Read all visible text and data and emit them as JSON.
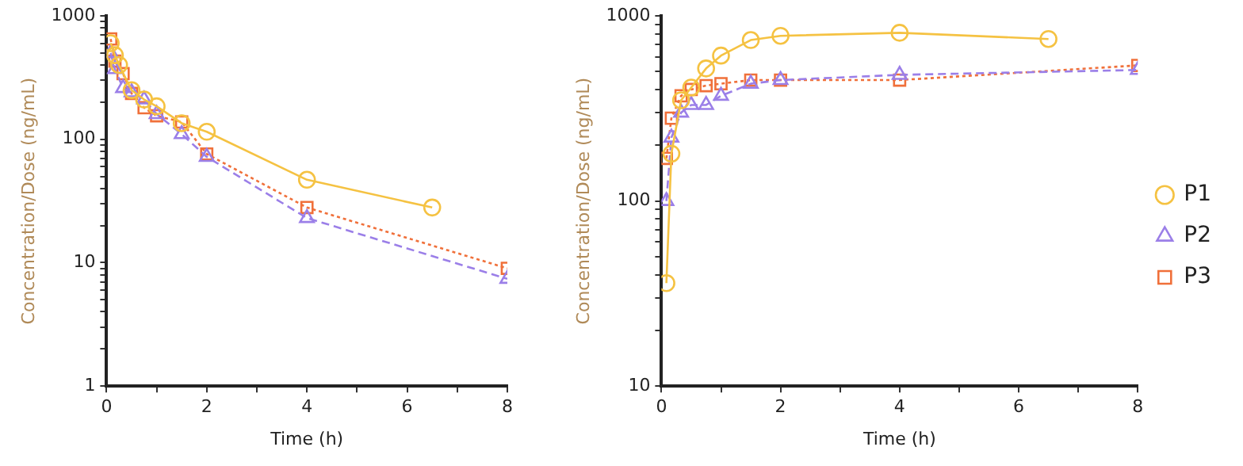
{
  "chart_data": [
    {
      "type": "line",
      "xlabel": "Time (h)",
      "ylabel": "Concentration/Dose (ng/mL)",
      "log": "y",
      "grid": false,
      "legend": false,
      "xlim": [
        0,
        8
      ],
      "xticks": [
        0,
        {
          "value": 1,
          "label": null
        },
        2,
        {
          "value": 3,
          "label": null
        },
        4,
        {
          "value": 5,
          "label": null
        },
        6,
        {
          "value": 7,
          "label": null
        },
        8
      ],
      "ylim": [
        1,
        1000
      ],
      "yticks": [
        1,
        {
          "value": 2,
          "label": null
        },
        {
          "value": 3,
          "label": null
        },
        {
          "value": 4,
          "label": null
        },
        {
          "value": 5,
          "label": null
        },
        {
          "value": 6,
          "label": null
        },
        {
          "value": 7,
          "label": null
        },
        {
          "value": 8,
          "label": null
        },
        {
          "value": 9,
          "label": null
        },
        10,
        {
          "value": 20,
          "label": null
        },
        {
          "value": 30,
          "label": null
        },
        {
          "value": 40,
          "label": null
        },
        {
          "value": 50,
          "label": null
        },
        {
          "value": 60,
          "label": null
        },
        {
          "value": 70,
          "label": null
        },
        {
          "value": 80,
          "label": null
        },
        {
          "value": 90,
          "label": null
        },
        100,
        {
          "value": 200,
          "label": null
        },
        {
          "value": 300,
          "label": null
        },
        {
          "value": 400,
          "label": null
        },
        {
          "value": 500,
          "label": null
        },
        {
          "value": 600,
          "label": null
        },
        {
          "value": 700,
          "label": null
        },
        {
          "value": 800,
          "label": null
        },
        {
          "value": 900,
          "label": null
        },
        1000
      ],
      "series": [
        {
          "color": "#f5c242",
          "marker": "circle",
          "line_style": "solid",
          "x": [
            0.083,
            0.167,
            0.25,
            0.5,
            0.75,
            1,
            1.5,
            2,
            4,
            6.5
          ],
          "values": [
            600,
            480,
            400,
            250,
            210,
            185,
            135,
            115,
            47,
            28
          ]
        },
        {
          "color": "#9b7fe8",
          "marker": "triangle",
          "line_style": "dashed",
          "x": [
            0.083,
            0.167,
            0.33,
            0.5,
            0.75,
            1,
            1.5,
            2,
            4,
            8
          ],
          "values": [
            500,
            370,
            260,
            240,
            210,
            160,
            110,
            72,
            23,
            7.4
          ]
        },
        {
          "color": "#f0703a",
          "marker": "square",
          "line_style": "dotted",
          "x": [
            0.083,
            0.167,
            0.33,
            0.5,
            0.75,
            1,
            1.5,
            2,
            4,
            8
          ],
          "values": [
            650,
            430,
            340,
            235,
            180,
            155,
            138,
            76,
            28,
            9
          ]
        }
      ]
    },
    {
      "type": "line",
      "xlabel": "Time (h)",
      "ylabel": "Concentration/Dose (ng/mL)",
      "log": "y",
      "grid": false,
      "legend": "right",
      "xlim": [
        0,
        8
      ],
      "xticks": [
        0,
        {
          "value": 1,
          "label": null
        },
        2,
        {
          "value": 3,
          "label": null
        },
        4,
        {
          "value": 5,
          "label": null
        },
        6,
        {
          "value": 7,
          "label": null
        },
        8
      ],
      "ylim": [
        10,
        1000
      ],
      "yticks": [
        10,
        {
          "value": 20,
          "label": null
        },
        {
          "value": 30,
          "label": null
        },
        {
          "value": 40,
          "label": null
        },
        {
          "value": 50,
          "label": null
        },
        {
          "value": 60,
          "label": null
        },
        {
          "value": 70,
          "label": null
        },
        {
          "value": 80,
          "label": null
        },
        {
          "value": 90,
          "label": null
        },
        100,
        {
          "value": 200,
          "label": null
        },
        {
          "value": 300,
          "label": null
        },
        {
          "value": 400,
          "label": null
        },
        {
          "value": 500,
          "label": null
        },
        {
          "value": 600,
          "label": null
        },
        {
          "value": 700,
          "label": null
        },
        {
          "value": 800,
          "label": null
        },
        {
          "value": 900,
          "label": null
        },
        1000
      ],
      "series": [
        {
          "name": "P1",
          "color": "#f5c242",
          "marker": "circle",
          "line_style": "solid",
          "x": [
            0.083,
            0.167,
            0.33,
            0.5,
            0.75,
            1,
            1.5,
            2,
            4,
            6.5
          ],
          "values": [
            36,
            180,
            350,
            410,
            520,
            610,
            740,
            780,
            810,
            750
          ]
        },
        {
          "name": "P2",
          "color": "#9b7fe8",
          "marker": "triangle",
          "line_style": "dashed",
          "x": [
            0.083,
            0.167,
            0.33,
            0.5,
            0.75,
            1,
            1.5,
            2,
            4,
            8
          ],
          "values": [
            100,
            220,
            300,
            330,
            330,
            370,
            430,
            450,
            480,
            510
          ]
        },
        {
          "name": "P3",
          "color": "#f0703a",
          "marker": "square",
          "line_style": "dotted",
          "x": [
            0.083,
            0.167,
            0.33,
            0.5,
            0.75,
            1,
            1.5,
            2,
            4,
            8
          ],
          "values": [
            170,
            280,
            370,
            400,
            420,
            430,
            450,
            450,
            450,
            540
          ]
        }
      ]
    }
  ]
}
